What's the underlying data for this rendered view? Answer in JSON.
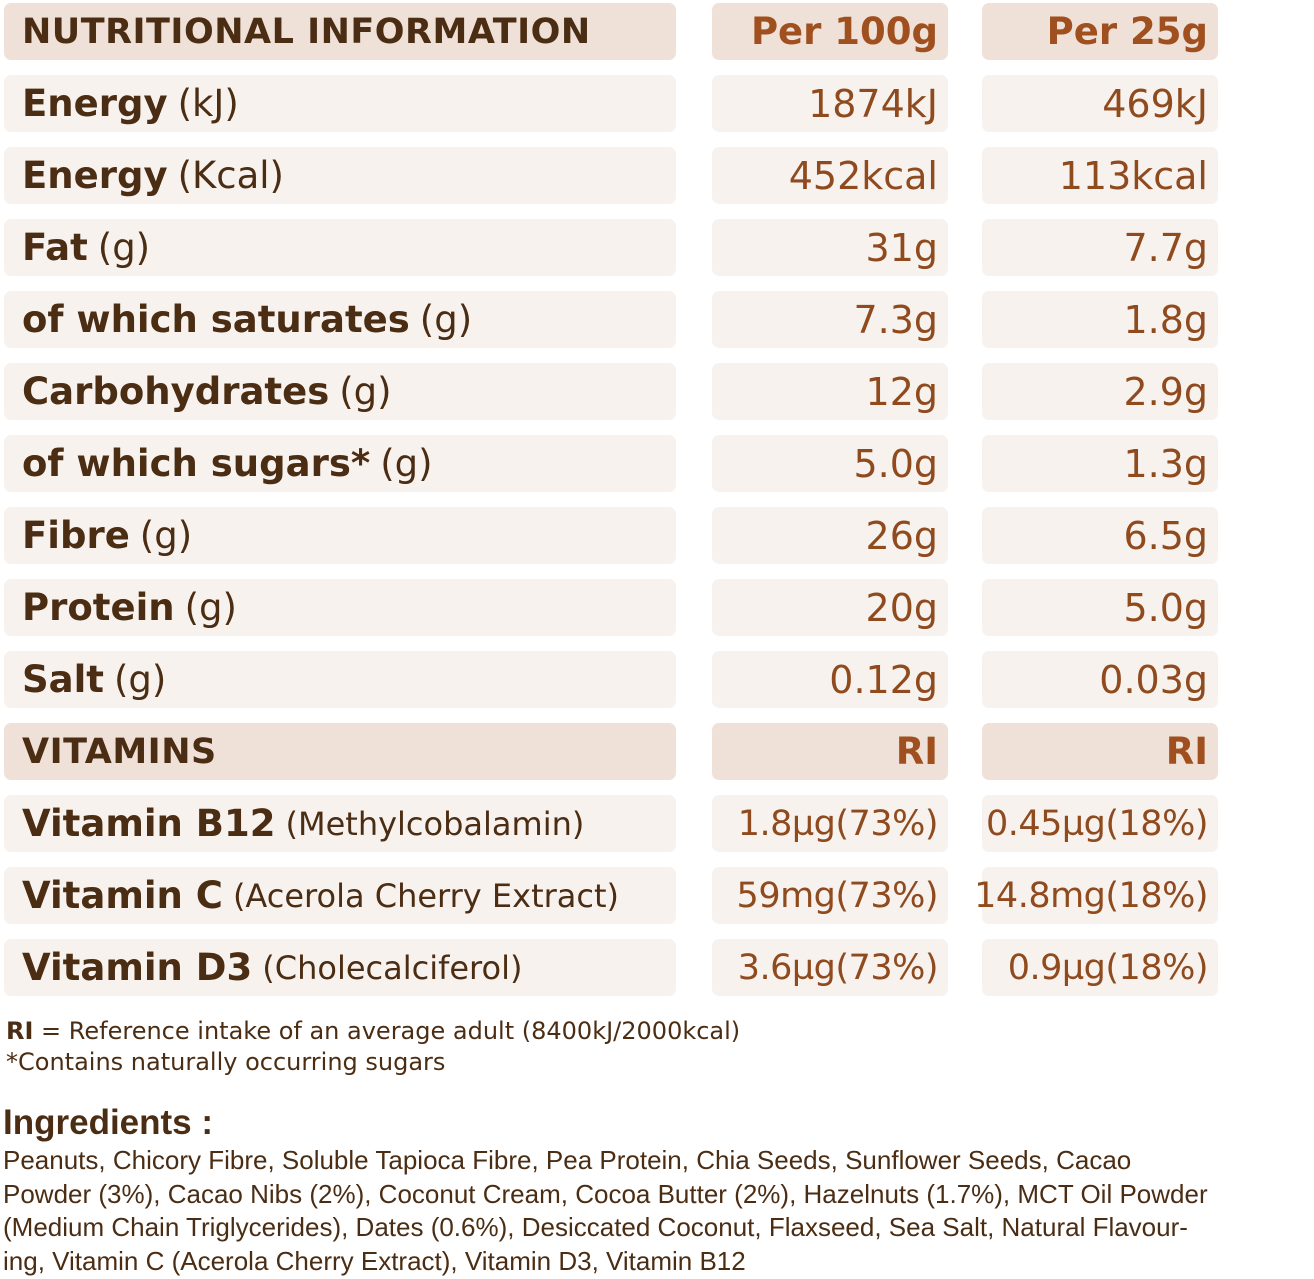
{
  "nutrition": {
    "header": {
      "label": "NUTRITIONAL INFORMATION",
      "col1": "Per 100g",
      "col2": "Per 25g"
    },
    "rows": [
      {
        "name": "Energy",
        "unit": "(kJ)",
        "v1": "1874kJ",
        "v2": "469kJ"
      },
      {
        "name": "Energy",
        "unit": "(Kcal)",
        "v1": "452kcal",
        "v2": "113kcal"
      },
      {
        "name": "Fat",
        "unit": "(g)",
        "v1": "31g",
        "v2": "7.7g"
      },
      {
        "name": "of which saturates",
        "unit": "(g)",
        "v1": "7.3g",
        "v2": "1.8g"
      },
      {
        "name": "Carbohydrates",
        "unit": "(g)",
        "v1": "12g",
        "v2": "2.9g"
      },
      {
        "name": "of which sugars*",
        "unit": "(g)",
        "v1": "5.0g",
        "v2": "1.3g"
      },
      {
        "name": "Fibre",
        "unit": "(g)",
        "v1": "26g",
        "v2": "6.5g"
      },
      {
        "name": "Protein",
        "unit": "(g)",
        "v1": "20g",
        "v2": "5.0g"
      },
      {
        "name": "Salt",
        "unit": "(g)",
        "v1": "0.12g",
        "v2": "0.03g"
      }
    ]
  },
  "vitamins": {
    "header": {
      "label": "VITAMINS",
      "col1": "RI",
      "col2": "RI"
    },
    "rows": [
      {
        "name": "Vitamin B12",
        "unit": "(Methylcobalamin)",
        "v1": "1.8µg(73%)",
        "v2": "0.45µg(18%)"
      },
      {
        "name": "Vitamin C",
        "unit": "(Acerola Cherry Extract)",
        "v1": "59mg(73%)",
        "v2": "14.8mg(18%)"
      },
      {
        "name": "Vitamin D3",
        "unit": "(Cholecalciferol)",
        "v1": "3.6µg(73%)",
        "v2": "0.9µg(18%)"
      }
    ]
  },
  "notes": {
    "ri_abbr": "RI",
    "ri_text": " = Reference intake of an average adult (8400kJ/2000kcal)",
    "sugars_note": "*Contains naturally occurring sugars"
  },
  "ingredients": {
    "title": "Ingredients :",
    "lines": [
      "Peanuts, Chicory Fibre, Soluble Tapioca Fibre, Pea Protein, Chia Seeds, Sunflower Seeds, Cacao",
      "Powder (3%), Cacao Nibs (2%), Coconut Cream, Cocoa Butter (2%), Hazelnuts (1.7%), MCT Oil Powder",
      "(Medium Chain Triglycerides), Dates (0.6%), Desiccated Coconut, Flaxseed, Sea Salt, Natural Flavour-",
      "ing, Vitamin C (Acerola Cherry Extract), Vitamin D3, Vitamin B12"
    ]
  },
  "colors": {
    "header_bg": "#efe1d7",
    "row_bg": "#f8f2ee",
    "label_text": "#4b2d14",
    "value_text": "#8f4a1e",
    "header_value_text": "#a0501f"
  }
}
